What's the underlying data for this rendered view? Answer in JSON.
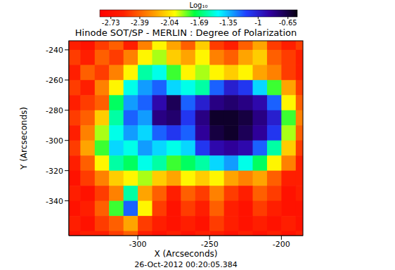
{
  "chart_data": {
    "type": "heatmap",
    "title": "Hinode SOT/SP - MERLIN : Degree of Polarization",
    "x_label": "X (Arcseconds)",
    "y_label": "Y (Arcseconds)",
    "annotation": "26-Oct-2012 00:20:05.384",
    "xlim": [
      -348,
      -185
    ],
    "xticks": [
      -300,
      -250,
      -200
    ],
    "ylim": [
      -363,
      -234
    ],
    "yticks": [
      -340,
      -320,
      -300,
      -280,
      -260,
      -240
    ],
    "grid": false,
    "x": [
      -345,
      -335,
      -325,
      -315,
      -305,
      -295,
      -285,
      -275,
      -265,
      -255,
      -245,
      -235,
      -225,
      -215,
      -205,
      -195,
      -185
    ],
    "y": [
      -235,
      -245,
      -255,
      -265,
      -275,
      -285,
      -295,
      -305,
      -315,
      -325,
      -335,
      -345,
      -355,
      -365
    ],
    "cells": [
      [
        -2.6,
        -2.7,
        -2.5,
        -2.4,
        -2.6,
        -2.3,
        -2.0,
        -2.2,
        -2.4,
        -2.1,
        -2.5,
        -2.6,
        -2.4,
        -2.2,
        -2.5,
        -2.6,
        -2.5
      ],
      [
        -2.5,
        -2.6,
        -2.4,
        -2.5,
        -2.3,
        -2.0,
        -1.9,
        -2.1,
        -2.2,
        -2.0,
        -2.3,
        -2.4,
        -2.2,
        -2.1,
        -2.4,
        -2.5,
        -2.6
      ],
      [
        -2.6,
        -2.4,
        -2.5,
        -2.3,
        -2.0,
        -1.6,
        -1.5,
        -1.8,
        -2.0,
        -1.9,
        -2.0,
        -2.1,
        -2.0,
        -2.2,
        -2.3,
        -2.5,
        -2.6
      ],
      [
        -2.5,
        -2.6,
        -2.3,
        -2.0,
        -1.5,
        -1.3,
        -1.2,
        -1.4,
        -1.5,
        -1.6,
        -1.2,
        -1.0,
        -1.1,
        -1.4,
        -1.8,
        -2.2,
        -2.5
      ],
      [
        -2.6,
        -2.5,
        -2.4,
        -1.7,
        -1.3,
        -1.2,
        -0.9,
        -0.7,
        -1.2,
        -1.0,
        -0.8,
        -0.75,
        -0.8,
        -0.9,
        -1.2,
        -2.0,
        -2.4
      ],
      [
        -2.5,
        -2.4,
        -2.1,
        -1.6,
        -1.2,
        -1.3,
        -0.8,
        -0.75,
        -1.1,
        -0.8,
        -0.6,
        -0.6,
        -0.65,
        -0.8,
        -1.0,
        -1.8,
        -2.3
      ],
      [
        -2.6,
        -2.3,
        -1.9,
        -1.5,
        -1.3,
        -1.4,
        -1.2,
        -1.1,
        -1.2,
        -0.85,
        -0.65,
        -0.6,
        -0.7,
        -0.85,
        -1.1,
        -1.9,
        -2.4
      ],
      [
        -2.5,
        -2.2,
        -1.8,
        -1.4,
        -1.5,
        -1.3,
        -1.4,
        -1.5,
        -1.4,
        -1.1,
        -0.9,
        -0.85,
        -0.9,
        -1.2,
        -1.6,
        -2.1,
        -2.5
      ],
      [
        -2.6,
        -2.4,
        -2.0,
        -1.6,
        -1.7,
        -1.5,
        -1.6,
        -1.8,
        -1.7,
        -1.6,
        -1.4,
        -1.3,
        -1.5,
        -1.7,
        -2.0,
        -2.3,
        -2.6
      ],
      [
        -2.7,
        -2.5,
        -2.3,
        -2.1,
        -2.0,
        -1.9,
        -2.1,
        -2.2,
        -2.0,
        -2.1,
        -2.0,
        -2.2,
        -2.3,
        -2.2,
        -2.4,
        -2.6,
        -2.6
      ],
      [
        -2.6,
        -2.7,
        -2.5,
        -2.3,
        -1.6,
        -2.2,
        -2.4,
        -2.6,
        -2.4,
        -2.5,
        -2.3,
        -2.5,
        -2.6,
        -2.4,
        -2.5,
        -2.7,
        -2.6
      ],
      [
        -2.7,
        -2.6,
        -2.4,
        -1.8,
        -1.2,
        -2.0,
        -2.5,
        -2.7,
        -2.5,
        -2.6,
        -2.4,
        -2.6,
        -2.7,
        -2.5,
        -2.6,
        -2.7,
        -2.7
      ],
      [
        -2.6,
        -2.7,
        -2.5,
        -2.4,
        -2.2,
        -2.5,
        -2.6,
        -2.7,
        -2.6,
        -2.7,
        -2.5,
        -2.6,
        -2.7,
        -2.6,
        -2.7,
        -2.6,
        -2.7
      ],
      [
        -2.7,
        -2.6,
        -2.6,
        -2.5,
        -2.4,
        -2.6,
        -2.7,
        -2.6,
        -2.7,
        -2.6,
        -2.6,
        -2.7,
        -2.6,
        -2.7,
        -2.6,
        -2.7,
        -2.6
      ]
    ],
    "colorbar": {
      "label": "Log₁₀",
      "range": [
        -2.86,
        -0.54
      ],
      "ticks": [
        -2.73,
        -2.39,
        -2.04,
        -1.69,
        -1.35,
        -1.0,
        -0.65
      ]
    }
  }
}
